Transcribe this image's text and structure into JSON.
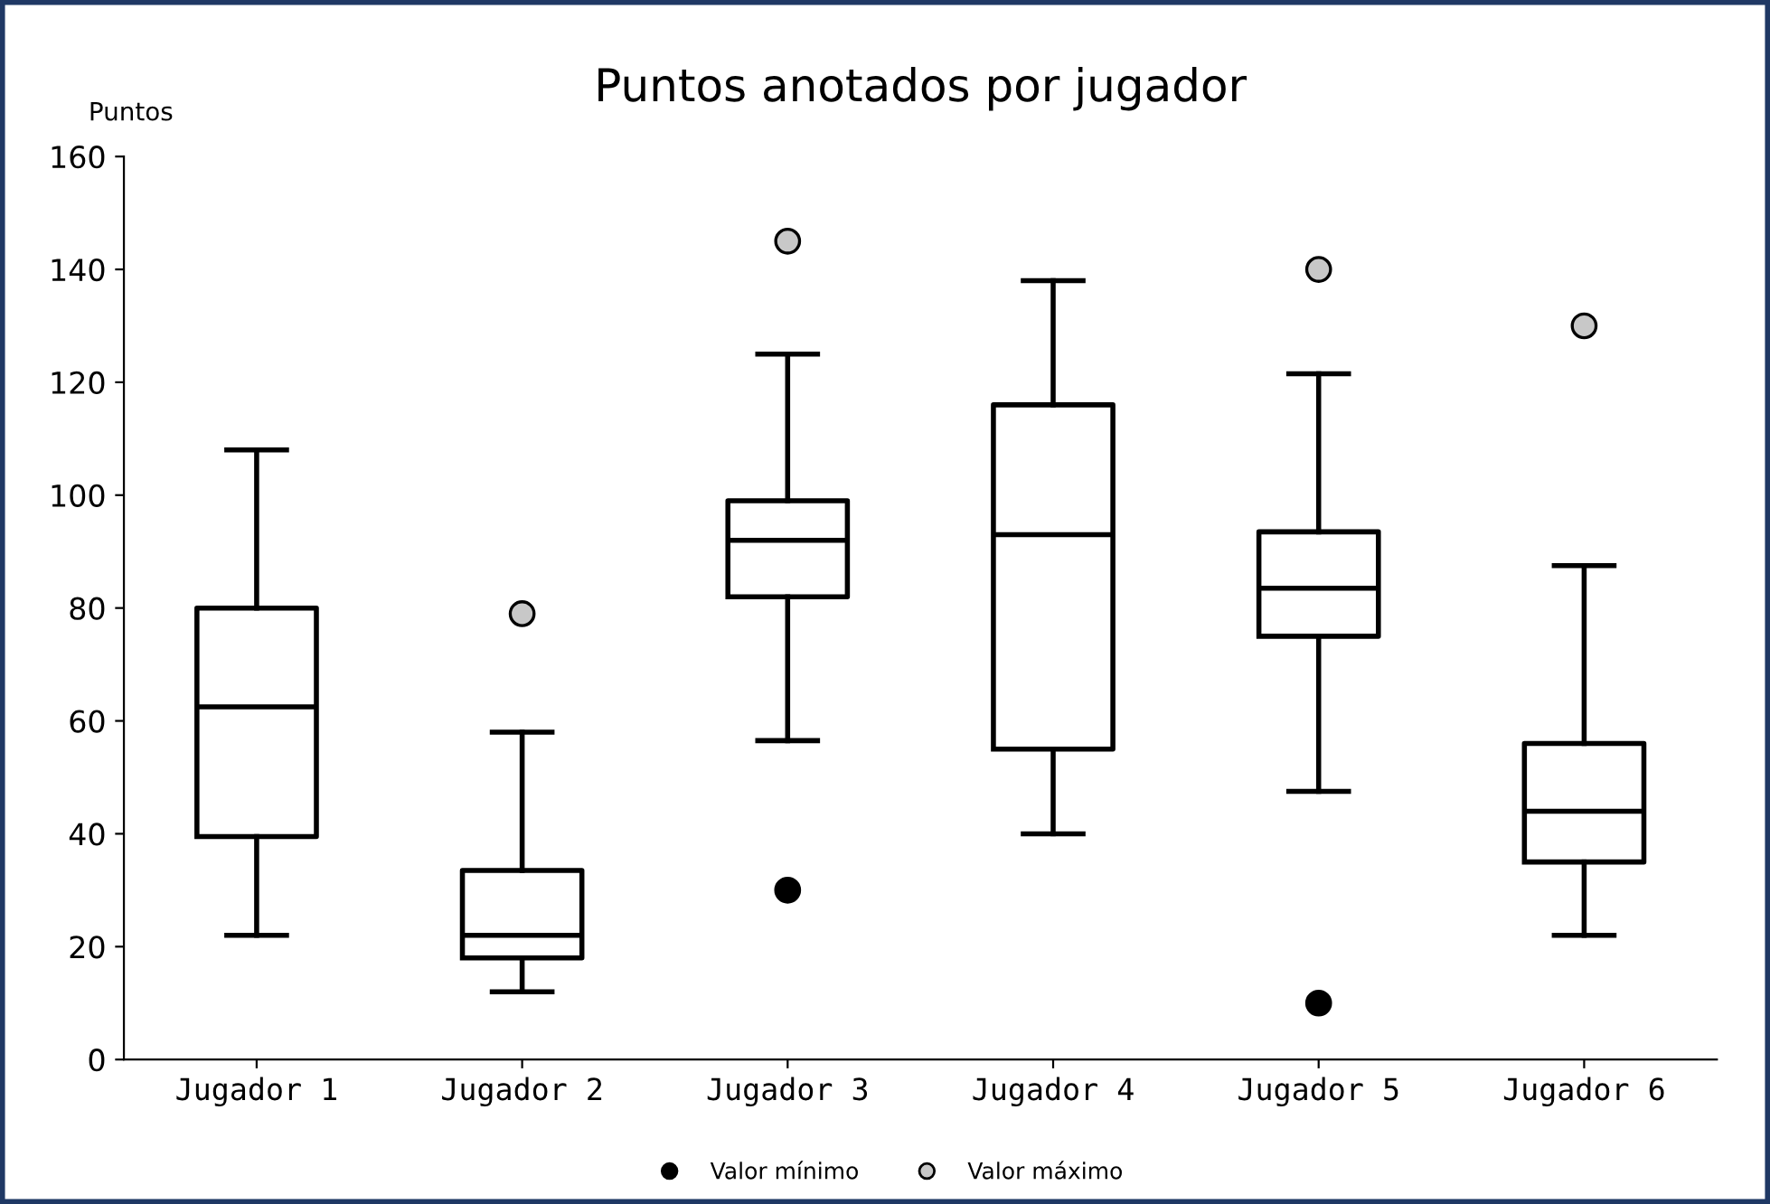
{
  "chart_data": {
    "type": "box",
    "title": "Puntos anotados por jugador",
    "ylabel": "Puntos",
    "categories": [
      "Jugador 1",
      "Jugador 2",
      "Jugador 3",
      "Jugador 4",
      "Jugador 5",
      "Jugador 6"
    ],
    "boxes": [
      {
        "low": 22,
        "q1": 39.5,
        "median": 62.5,
        "q3": 80,
        "high": 108
      },
      {
        "low": 12,
        "q1": 18,
        "median": 22,
        "q3": 33.5,
        "high": 58
      },
      {
        "low": 56.5,
        "q1": 82,
        "median": 92,
        "q3": 99,
        "high": 125
      },
      {
        "low": 40,
        "q1": 55,
        "median": 93,
        "q3": 116,
        "high": 138
      },
      {
        "low": 47.5,
        "q1": 75,
        "median": 83.5,
        "q3": 93.5,
        "high": 121.5
      },
      {
        "low": 22,
        "q1": 35,
        "median": 44,
        "q3": 56,
        "high": 87.5
      }
    ],
    "series": [
      {
        "type": "scatter",
        "name": "Valor mínimo",
        "color": "#000000",
        "values": [
          null,
          null,
          30,
          null,
          10,
          null
        ]
      },
      {
        "type": "scatter",
        "name": "Valor máximo",
        "color": "#c8c8c8",
        "values": [
          null,
          79,
          145,
          null,
          140,
          130
        ]
      }
    ],
    "ylim": [
      0,
      160
    ],
    "yticks": [
      0,
      20,
      40,
      60,
      80,
      100,
      120,
      140,
      160
    ],
    "grid": false,
    "legend": "bottom",
    "marker": "circle"
  }
}
